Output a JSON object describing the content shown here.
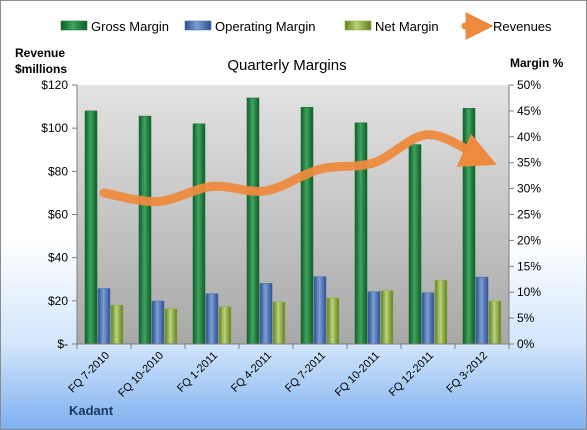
{
  "chart_data": {
    "type": "bar",
    "title": "Quarterly Margins",
    "ylabel_left": [
      "Revenue",
      "$millions"
    ],
    "ylabel_right": "Margin %",
    "footer_label": "Kadant",
    "categories": [
      "FQ 7-2010",
      "FQ 10-2010",
      "FQ 1-2011",
      "FQ 4-2011",
      "FQ 7-2011",
      "FQ 10-2011",
      "FQ 12-2011",
      "FQ 3-2012"
    ],
    "left_axis": {
      "range": [
        0,
        120
      ],
      "ticks": [
        "$-",
        "$20",
        "$40",
        "$60",
        "$80",
        "$100",
        "$120"
      ]
    },
    "right_axis": {
      "range": [
        0,
        50
      ],
      "ticks": [
        "0%",
        "5%",
        "10%",
        "15%",
        "20%",
        "25%",
        "30%",
        "35%",
        "40%",
        "45%",
        "50%"
      ]
    },
    "series": [
      {
        "name": "Gross Margin",
        "kind": "bar",
        "axis": "right",
        "color": "#1e7a3c",
        "values": [
          45.0,
          44.0,
          42.5,
          47.5,
          45.7,
          42.7,
          38.5,
          45.5
        ]
      },
      {
        "name": "Operating Margin",
        "kind": "bar",
        "axis": "right",
        "color": "#4a6fb0",
        "values": [
          10.7,
          8.3,
          9.7,
          11.7,
          13.0,
          10.1,
          9.9,
          12.9
        ]
      },
      {
        "name": "Net Margin",
        "kind": "bar",
        "axis": "right",
        "color": "#8fae3f",
        "values": [
          7.5,
          6.8,
          7.2,
          8.1,
          8.9,
          10.3,
          12.3,
          8.3
        ]
      },
      {
        "name": "Revenues",
        "kind": "line",
        "axis": "left",
        "color": "#ed8a3e",
        "values": [
          70,
          66,
          73,
          71,
          81,
          84,
          97,
          86
        ]
      }
    ],
    "legend_position": "top",
    "grid": false
  }
}
